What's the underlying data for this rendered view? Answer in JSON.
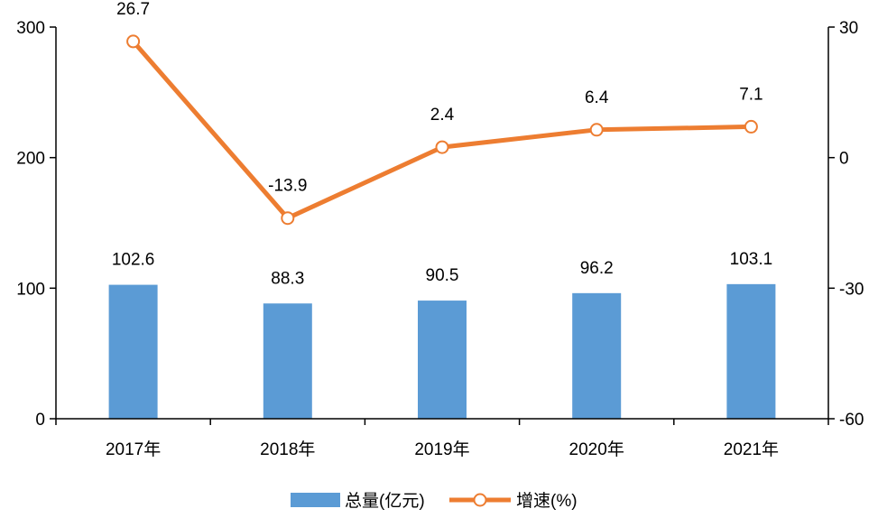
{
  "chart_data": {
    "type": "bar+line",
    "categories": [
      "2017年",
      "2018年",
      "2019年",
      "2020年",
      "2021年"
    ],
    "series": [
      {
        "name": "总量(亿元)",
        "type": "bar",
        "axis": "left",
        "values": [
          102.6,
          88.3,
          90.5,
          96.2,
          103.1
        ],
        "labels": [
          "102.6",
          "88.3",
          "90.5",
          "96.2",
          "103.1"
        ],
        "color": "#5b9bd5"
      },
      {
        "name": "增速(%)",
        "type": "line",
        "axis": "right",
        "values": [
          26.7,
          -13.9,
          2.4,
          6.4,
          7.1
        ],
        "labels": [
          "26.7",
          "-13.9",
          "2.4",
          "6.4",
          "7.1"
        ],
        "color": "#ed7d31"
      }
    ],
    "left_axis": {
      "ylim": [
        0,
        300
      ],
      "ticks": [
        "0",
        "100",
        "200",
        "300"
      ]
    },
    "right_axis": {
      "ylim": [
        -60,
        30
      ],
      "ticks": [
        "-60",
        "-30",
        "0",
        "30"
      ]
    },
    "legend_position": "bottom",
    "grid": false
  }
}
